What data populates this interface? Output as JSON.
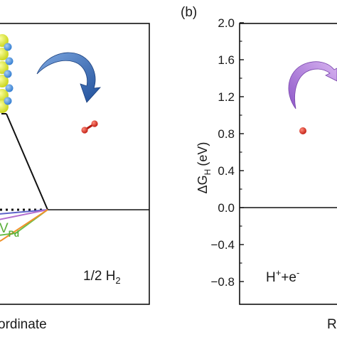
{
  "panel_b_label": "(b)",
  "chart_data": [
    {
      "type": "line",
      "panel": "a",
      "xlabel": "ordinate",
      "reactant_label": "1/2 H",
      "reactant_label_subscript": "2",
      "curve_label": "V",
      "curve_label_subscript": "Pd",
      "colors": {
        "baseline": "#111111",
        "dotted": "#111111",
        "curve_blue": "#5e63c9",
        "curve_purple": "#b46fd0",
        "curve_green": "#6cc04a",
        "curve_orange": "#f0922b",
        "label_green": "#5aae3a",
        "arrow": "#2d5da8"
      },
      "icons": [
        "crystal-slab-icon",
        "curved-arrow-icon",
        "h2-molecule-icon"
      ]
    },
    {
      "type": "line",
      "panel": "b",
      "ylabel": "ΔG",
      "ylabel_subscript": "H",
      "ylabel_unit": "(eV)",
      "xlabel": "R",
      "ylim": [
        -0.9,
        2.0
      ],
      "yticks": [
        2.0,
        1.6,
        1.2,
        0.8,
        0.4,
        0.0,
        -0.4,
        -0.8
      ],
      "ytick_labels": [
        "2.0",
        "1.6",
        "1.2",
        "0.8",
        "0.4",
        "0.0",
        "−0.4",
        "−0.8"
      ],
      "baseline_value": 0.0,
      "state_label": "H",
      "state_label_sup1": "+",
      "state_label_mid": "+e",
      "state_label_sup2": "-",
      "colors": {
        "axis": "#111111",
        "arrow": "#9a66d0",
        "atom": "#d42a1e"
      },
      "icons": [
        "curved-arrow-icon",
        "h-atom-icon"
      ]
    }
  ]
}
